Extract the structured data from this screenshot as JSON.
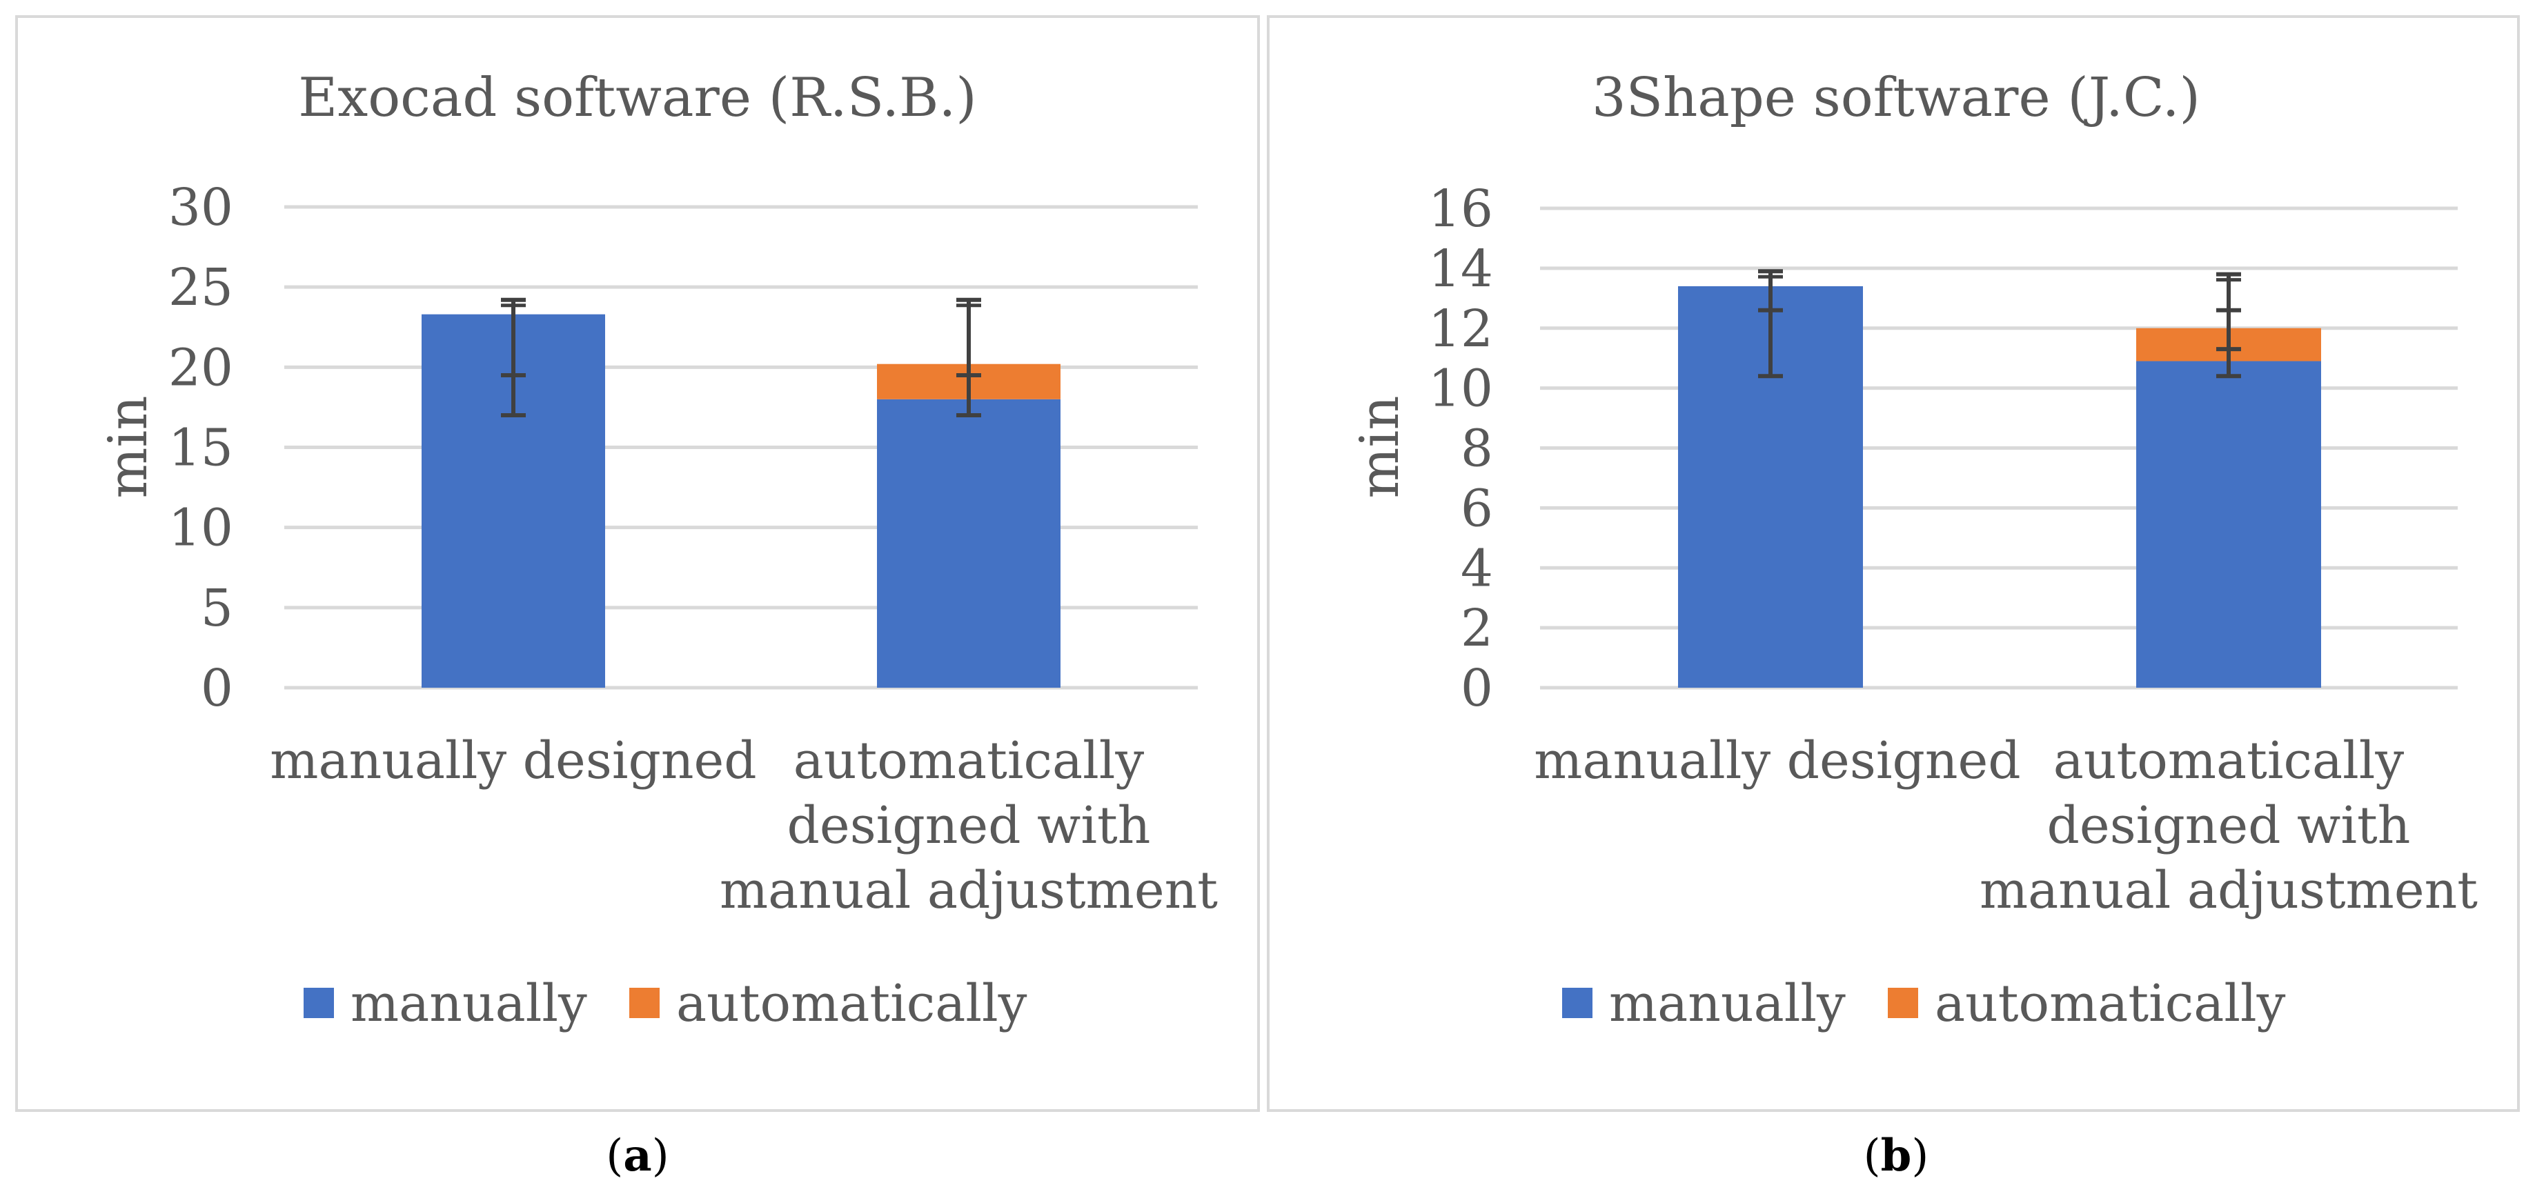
{
  "chart_data": [
    {
      "type": "bar",
      "stacked": true,
      "title": "Exocad software (R.S.B.)",
      "ylabel": "min",
      "xlabel": "",
      "ylim": [
        0,
        30
      ],
      "yticks": [
        0,
        5,
        10,
        15,
        20,
        25,
        30
      ],
      "grid": true,
      "legend_position": "bottom",
      "categories": [
        "manually designed",
        "automatically designed with manual adjustment"
      ],
      "category_lines": [
        [
          "manually designed"
        ],
        [
          "automatically",
          "designed with",
          "manual adjustment"
        ]
      ],
      "series": [
        {
          "name": "manually",
          "color": "#4472C4",
          "values": [
            23.3,
            18.0
          ]
        },
        {
          "name": "automatically",
          "color": "#ED7D31",
          "values": [
            0,
            2.2
          ]
        }
      ],
      "error_bars": [
        {
          "category": 0,
          "low": 17.0,
          "high": 24.2,
          "mid": 19.5
        },
        {
          "category": 1,
          "low": 17.0,
          "high": 24.2,
          "mid": 19.5
        }
      ],
      "panel_label_open": "(",
      "panel_label": "a",
      "panel_label_close": ")"
    },
    {
      "type": "bar",
      "stacked": true,
      "title": "3Shape software (J.C.)",
      "ylabel": "min",
      "xlabel": "",
      "ylim": [
        0,
        16
      ],
      "yticks": [
        0,
        2,
        4,
        6,
        8,
        10,
        12,
        14,
        16
      ],
      "grid": true,
      "legend_position": "bottom",
      "categories": [
        "manually designed",
        "automatically designed with manual adjustment"
      ],
      "category_lines": [
        [
          "manually designed"
        ],
        [
          "automatically",
          "designed with",
          "manual adjustment"
        ]
      ],
      "series": [
        {
          "name": "manually",
          "color": "#4472C4",
          "values": [
            13.4,
            10.9
          ]
        },
        {
          "name": "automatically",
          "color": "#ED7D31",
          "values": [
            0,
            1.1
          ]
        }
      ],
      "error_bars": [
        {
          "category": 0,
          "low": 10.4,
          "high": 13.9,
          "mid": 12.6
        },
        {
          "category": 1,
          "low": 10.4,
          "high": 13.8,
          "mid": 12.6,
          "mid2": 11.3
        }
      ],
      "panel_label_open": "(",
      "panel_label": "b",
      "panel_label_close": ")"
    }
  ]
}
